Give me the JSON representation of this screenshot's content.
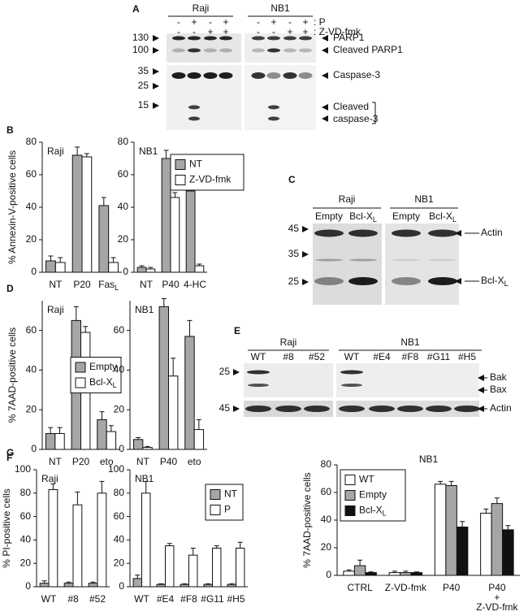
{
  "chart_data": [
    {
      "type": "bar",
      "panel": "B",
      "title": "Raji",
      "y_label": "% Annexin-V-positive cells",
      "categories": [
        "NT",
        "P20",
        {
          "text": "Fas",
          "sub": "L"
        }
      ],
      "series": [
        {
          "color": "#a6a6a6",
          "values": [
            7,
            72,
            41
          ],
          "errors": [
            3,
            5,
            5
          ]
        },
        {
          "color": "#ffffff",
          "values": [
            6,
            71,
            6
          ],
          "errors": [
            3,
            2,
            3
          ]
        }
      ],
      "ylim": [
        0,
        80
      ],
      "yticks": [
        0,
        20,
        40,
        60,
        80
      ]
    },
    {
      "type": "bar",
      "title": "NB1",
      "categories": [
        "NT",
        "P40",
        "4-HC"
      ],
      "series": [
        {
          "name": "NT",
          "color": "#a6a6a6",
          "values": [
            3,
            70,
            50
          ],
          "errors": [
            1,
            5,
            20
          ]
        },
        {
          "name": "Z-VD-fmk",
          "color": "#ffffff",
          "values": [
            2,
            46,
            4
          ],
          "errors": [
            1,
            3,
            1
          ]
        }
      ],
      "ylim": [
        0,
        80
      ],
      "yticks": [
        0,
        20,
        40,
        60,
        80
      ],
      "legend": "upper right"
    },
    {
      "type": "bar",
      "panel": "D",
      "title": "Raji",
      "y_label": "% 7AAD-positive cells",
      "categories": [
        "NT",
        "P20",
        "eto"
      ],
      "series": [
        {
          "name": "Empty",
          "color": "#a6a6a6",
          "values": [
            8,
            65,
            15
          ],
          "errors": [
            3,
            7,
            4
          ]
        },
        {
          "name": {
            "text": "Bcl-X",
            "sub": "L"
          },
          "color": "#ffffff",
          "values": [
            8,
            59,
            9
          ],
          "errors": [
            3,
            3,
            3
          ]
        }
      ],
      "ylim": [
        0,
        75
      ],
      "yticks": [
        0,
        20,
        40,
        60
      ],
      "legend": "center right"
    },
    {
      "type": "bar",
      "title": "NB1",
      "categories": [
        "NT",
        "P40",
        "eto"
      ],
      "series": [
        {
          "color": "#a6a6a6",
          "values": [
            5,
            72,
            57
          ],
          "errors": [
            1,
            4,
            8
          ]
        },
        {
          "color": "#ffffff",
          "values": [
            1,
            37,
            10
          ],
          "errors": [
            0.5,
            9,
            5
          ]
        }
      ],
      "ylim": [
        0,
        75
      ],
      "yticks": [
        0,
        20,
        40,
        60
      ]
    },
    {
      "type": "bar",
      "panel": "F",
      "title": "Raji",
      "y_label": "% PI-positive cells",
      "categories": [
        "WT",
        "#8",
        "#52"
      ],
      "series": [
        {
          "color": "#a6a6a6",
          "values": [
            3,
            3,
            3
          ],
          "errors": [
            2,
            1,
            1
          ]
        },
        {
          "color": "#ffffff",
          "values": [
            83,
            70,
            80
          ],
          "errors": [
            5,
            11,
            10
          ]
        }
      ],
      "ylim": [
        0,
        100
      ],
      "yticks": [
        0,
        20,
        40,
        60,
        80,
        100
      ]
    },
    {
      "type": "bar",
      "title": "NB1",
      "categories": [
        "WT",
        "#E4",
        "#F8",
        "#G11",
        "#H5"
      ],
      "series": [
        {
          "name": "NT",
          "color": "#a6a6a6",
          "values": [
            7,
            2,
            2,
            2,
            2
          ],
          "errors": [
            3,
            0.5,
            0.5,
            0.5,
            0.5
          ]
        },
        {
          "name": "P",
          "color": "#ffffff",
          "values": [
            80,
            35,
            27,
            33,
            33
          ],
          "errors": [
            10,
            2,
            6,
            2,
            5
          ]
        }
      ],
      "ylim": [
        0,
        100
      ],
      "yticks": [
        0,
        20,
        40,
        60,
        80,
        100
      ],
      "legend": "upper right"
    },
    {
      "type": "bar",
      "panel": "G",
      "title": "NB1",
      "y_label": "% 7AAD-positive cells",
      "categories": [
        "CTRL",
        "Z-VD-fmk",
        "P40",
        [
          "P40",
          "+",
          "Z-VD-fmk"
        ]
      ],
      "series": [
        {
          "name": "WT",
          "color": "#ffffff",
          "values": [
            3,
            2,
            66,
            45
          ],
          "errors": [
            1,
            1,
            2,
            3
          ]
        },
        {
          "name": "Empty",
          "color": "#a6a6a6",
          "values": [
            7,
            2,
            65,
            52
          ],
          "errors": [
            4,
            1,
            3,
            4
          ]
        },
        {
          "name": {
            "text": "Bcl-X",
            "sub": "L"
          },
          "color": "#111111",
          "values": [
            2,
            2,
            35,
            33
          ],
          "errors": [
            0.5,
            0.5,
            4,
            3
          ]
        }
      ],
      "ylim": [
        0,
        80
      ],
      "yticks": [
        0,
        20,
        40,
        60,
        80
      ],
      "legend": "upper left"
    }
  ],
  "blots": {
    "A": {
      "panel": "A",
      "groups": [
        "Raji",
        "NB1"
      ],
      "rows": [
        {
          "label": ": P",
          "signs": [
            "-",
            "+",
            "-",
            "+",
            "-",
            "+",
            "-",
            "+"
          ]
        },
        {
          "label": ": Z-VD-fmk",
          "signs": [
            "-",
            "-",
            "+",
            "+",
            "-",
            "-",
            "+",
            "+"
          ]
        }
      ],
      "markers": [
        130,
        100,
        35,
        25,
        15
      ],
      "bands": [
        "PARP1",
        "Cleaved PARP1",
        "Caspase-3",
        [
          "Cleaved",
          "caspase-3"
        ]
      ]
    },
    "C": {
      "panel": "C",
      "groups": [
        "Raji",
        "NB1"
      ],
      "lanes": [
        "Empty",
        {
          "text": "Bcl-X",
          "sub": "L"
        },
        "Empty",
        {
          "text": "Bcl-X",
          "sub": "L"
        }
      ],
      "markers": [
        45,
        35,
        25
      ],
      "bands": [
        "Actin",
        {
          "text": "Bcl-X",
          "sub": "L"
        }
      ]
    },
    "E": {
      "panel": "E",
      "groups": [
        "Raji",
        "NB1"
      ],
      "lanes": [
        "WT",
        "#8",
        "#52",
        "WT",
        "#E4",
        "#F8",
        "#G11",
        "#H5"
      ],
      "markers": [
        25,
        45
      ],
      "bands": [
        "Bak",
        "Bax",
        "Actin"
      ]
    }
  }
}
